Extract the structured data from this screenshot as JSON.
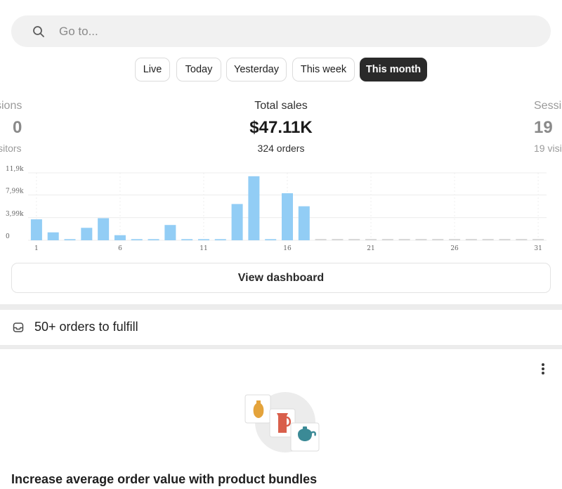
{
  "search": {
    "placeholder": "Go to...",
    "value": ""
  },
  "tabs": [
    {
      "label": "Live",
      "active": false
    },
    {
      "label": "Today",
      "active": false
    },
    {
      "label": "Yesterday",
      "active": false
    },
    {
      "label": "This week",
      "active": false
    },
    {
      "label": "This month",
      "active": true
    }
  ],
  "metrics": {
    "left": {
      "label": "sions",
      "value": "0",
      "sub": "isitors"
    },
    "center": {
      "label": "Total sales",
      "value": "$47.11K",
      "sub": "324 orders"
    },
    "right": {
      "label": "Sessi",
      "value": "19",
      "sub": "19 visi"
    }
  },
  "chart_data": {
    "type": "bar",
    "x": [
      1,
      2,
      3,
      4,
      5,
      6,
      7,
      8,
      9,
      10,
      11,
      12,
      13,
      14,
      15,
      16,
      17,
      18,
      19,
      20,
      21,
      22,
      23,
      24,
      25,
      26,
      27,
      28,
      29,
      30,
      31
    ],
    "values": [
      3700,
      1400,
      200,
      2200,
      3900,
      900,
      200,
      200,
      2700,
      200,
      200,
      200,
      6400,
      11300,
      200,
      8300,
      6000,
      0,
      0,
      0,
      0,
      0,
      0,
      0,
      0,
      0,
      0,
      0,
      0,
      0,
      0
    ],
    "x_ticks": [
      "1",
      "6",
      "11",
      "16",
      "21",
      "26",
      "31"
    ],
    "y_ticks": [
      "0",
      "3,99k",
      "7,99k",
      "11,9k"
    ],
    "y_tick_values": [
      0,
      3990,
      7990,
      11900
    ],
    "ylim": [
      0,
      11900
    ],
    "bar_color": "#92cdf5",
    "grid": true
  },
  "view_dashboard": {
    "label": "View dashboard"
  },
  "fulfill": {
    "label": "50+ orders to fulfill"
  },
  "card": {
    "title": "Increase average order value with product bundles"
  }
}
